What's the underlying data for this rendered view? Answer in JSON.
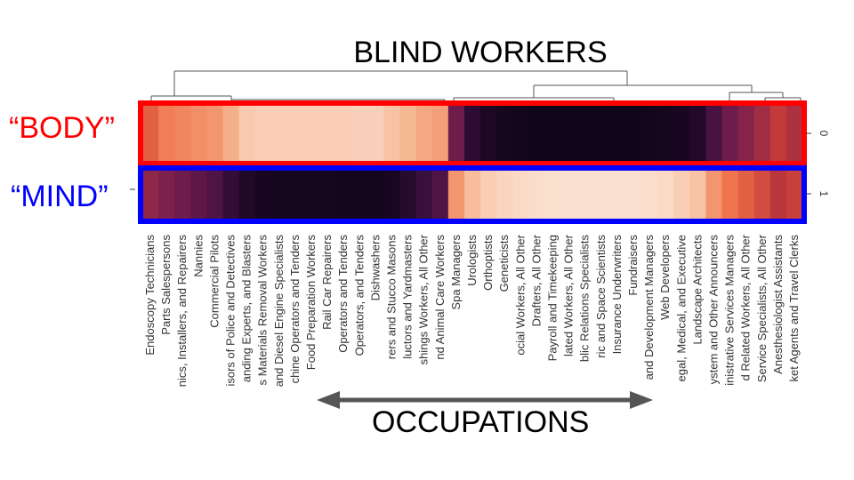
{
  "title": "BLIND WORKERS",
  "row_labels": [
    {
      "text": "“BODY”",
      "color": "#ff0000"
    },
    {
      "text": "“MIND”",
      "color": "#0000ff"
    }
  ],
  "x_caption": "OCCUPATIONS",
  "chart_data": {
    "type": "heatmap",
    "title": "BLIND WORKERS",
    "rows": [
      "0",
      "1"
    ],
    "row_groups": [
      "“BODY”",
      "“MIND”"
    ],
    "column_labels": [
      "Endoscopy Technicians",
      "Parts Salespersons",
      "nics, Installers, and Repairers",
      "Nannies",
      "Commercial Pilots",
      "isors of Police and Detectives",
      "anding Experts, and Blasters",
      "s Materials Removal Workers",
      "and Diesel Engine Specialists",
      "chine Operators and Tenders",
      "Food Preparation Workers",
      "Rail Car Repairers",
      "Operators and Tenders",
      "Operators, and Tenders",
      "Dishwashers",
      "rers and Stucco Masons",
      "luctors and Yardmasters",
      "shings Workers, All Other",
      "nd Animal Care Workers",
      "Spa Managers",
      "Urologists",
      "Orthoptists",
      "Geneticists",
      "ocial Workers, All Other",
      "Drafters, All Other",
      "Payroll and Timekeeping",
      "lated Workers, All Other",
      "blic Relations Specialists",
      "ric and Space Scientists",
      "Insurance Underwriters",
      "Fundraisers",
      "and Development Managers",
      "Web Developers",
      "egal, Medical, and Executive",
      "Landscape Architects",
      "ystem and Other Announcers",
      "inistrative Services Managers",
      "d Related Workers, All Other",
      "Service Specialists, All Other",
      "Anesthesiologist Assistants",
      "ket Agents and Travel Clerks"
    ],
    "color_scale": [
      "#0a0414",
      "#3b0f3f",
      "#7a1f4e",
      "#c23a3a",
      "#ef6f48",
      "#f6b590",
      "#fbe6d8"
    ],
    "values": [
      [
        0.62,
        0.7,
        0.72,
        0.74,
        0.76,
        0.82,
        0.9,
        0.92,
        0.92,
        0.92,
        0.92,
        0.92,
        0.92,
        0.93,
        0.93,
        0.88,
        0.84,
        0.8,
        0.78,
        0.3,
        0.12,
        0.06,
        0.04,
        0.03,
        0.02,
        0.02,
        0.02,
        0.02,
        0.02,
        0.02,
        0.02,
        0.03,
        0.04,
        0.05,
        0.08,
        0.2,
        0.3,
        0.36,
        0.42,
        0.5,
        0.45
      ],
      [
        0.38,
        0.34,
        0.3,
        0.26,
        0.22,
        0.14,
        0.07,
        0.05,
        0.04,
        0.04,
        0.04,
        0.04,
        0.03,
        0.03,
        0.03,
        0.05,
        0.1,
        0.16,
        0.22,
        0.76,
        0.86,
        0.92,
        0.94,
        0.96,
        0.97,
        0.98,
        0.98,
        0.98,
        0.98,
        0.98,
        0.98,
        0.97,
        0.96,
        0.92,
        0.88,
        0.76,
        0.68,
        0.62,
        0.56,
        0.48,
        0.52
      ]
    ]
  }
}
